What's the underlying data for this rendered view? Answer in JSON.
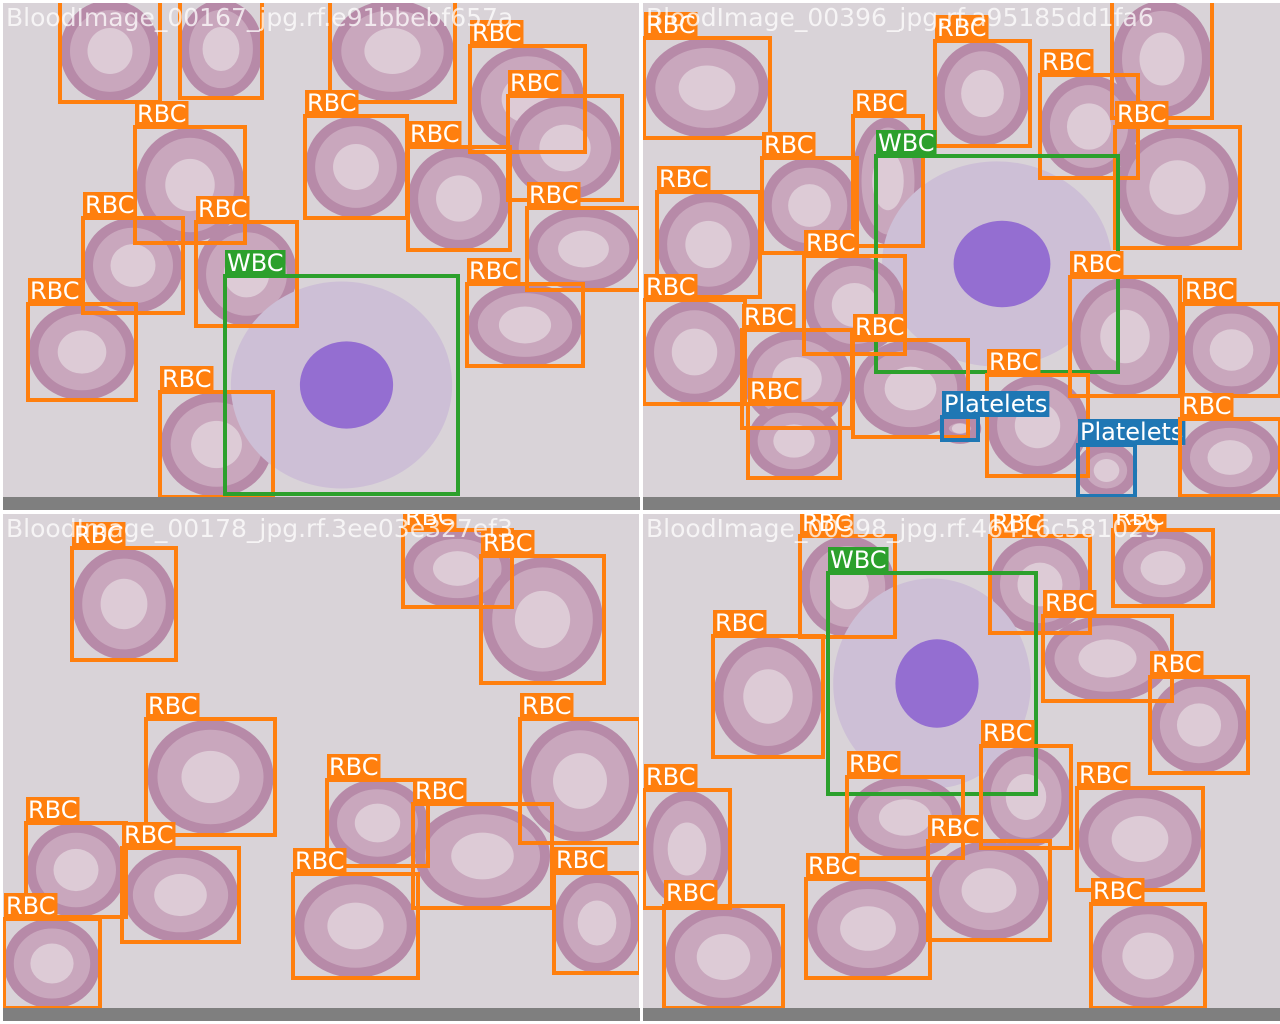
{
  "colors": {
    "RBC": "#ff7f0e",
    "WBC": "#2ca02c",
    "Platelets": "#1f77b4"
  },
  "panels": [
    {
      "title": "BloodImage_00167_jpg.rf.e91bbebf657a",
      "boxes": [
        "RBC",
        "RBC",
        "RBC",
        "RBC",
        "RBC",
        "RBC",
        "RBC",
        "RBC",
        "RBC",
        "RBC",
        "RBC",
        "RBC",
        "RBC",
        "RBC",
        "WBC"
      ]
    },
    {
      "title": "BloodImage_00396_jpg.rf.a95185dd1fa6",
      "boxes": [
        "RBC",
        "RBC",
        "RBC",
        "RBC",
        "RBC",
        "RBC",
        "RBC",
        "WBC",
        "RBC",
        "RBC",
        "RBC",
        "RBC",
        "RBC",
        "RBC",
        "RBC",
        "RBC",
        "RBC",
        "Platelets",
        "Platelets",
        "RBC"
      ]
    },
    {
      "title": "BloodImage_00178_jpg.rf.3ee03e327ef3",
      "boxes": [
        "RBC",
        "RBC",
        "RBC",
        "RBC",
        "RBC",
        "RBC",
        "RBC",
        "RBC",
        "RBC",
        "RBC",
        "RBC",
        "RBC"
      ]
    },
    {
      "title": "BloodImage_00398_jpg.rf.46416c581029",
      "boxes": [
        "RBC",
        "RBC",
        "RBC",
        "WBC",
        "RBC",
        "RBC",
        "RBC",
        "RBC",
        "RBC",
        "RBC",
        "RBC",
        "RBC",
        "RBC",
        "RBC",
        "RBC"
      ]
    }
  ]
}
